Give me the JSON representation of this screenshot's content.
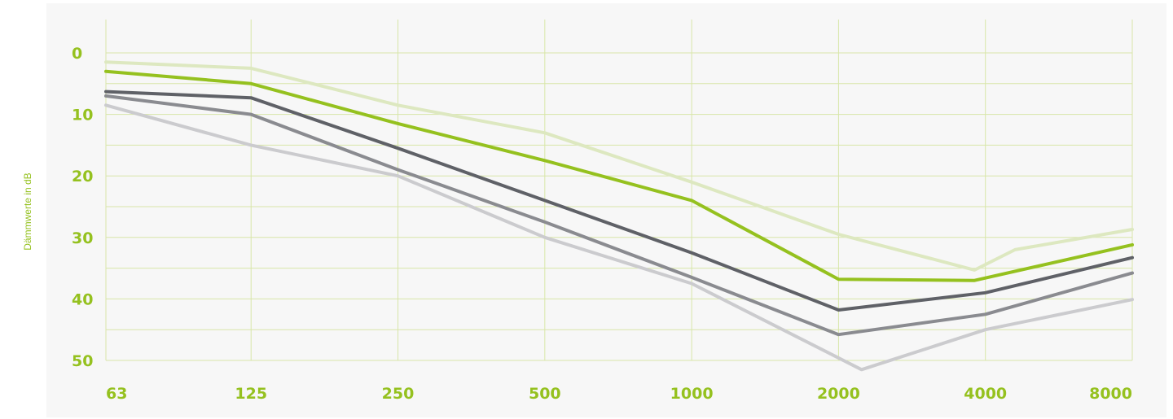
{
  "chart_data": {
    "type": "line",
    "title": "",
    "xlabel": "",
    "ylabel": "Dämmwerte in dB",
    "categories": [
      "63",
      "125",
      "250",
      "500",
      "1000",
      "2000",
      "4000",
      "8000"
    ],
    "y_ticks": [
      "0",
      "10",
      "20",
      "30",
      "40",
      "50"
    ],
    "ylim": [
      50,
      0
    ],
    "y_inverted": true,
    "grid": true,
    "x_scale": "log2",
    "series": [
      {
        "color": "#dde8c0",
        "points": [
          [
            63,
            1.5
          ],
          [
            125,
            2.5
          ],
          [
            250,
            8.5
          ],
          [
            500,
            13
          ],
          [
            1000,
            21
          ],
          [
            2000,
            29.5
          ],
          [
            3800,
            35.3
          ],
          [
            4600,
            32
          ],
          [
            8000,
            28.7
          ]
        ]
      },
      {
        "color": "#95c11f",
        "points": [
          [
            63,
            3
          ],
          [
            125,
            5
          ],
          [
            250,
            11.5
          ],
          [
            500,
            17.5
          ],
          [
            1000,
            24
          ],
          [
            2000,
            36.8
          ],
          [
            3800,
            37
          ],
          [
            8000,
            31.2
          ]
        ]
      },
      {
        "color": "#5f6167",
        "points": [
          [
            63,
            6.3
          ],
          [
            125,
            7.3
          ],
          [
            250,
            15.5
          ],
          [
            500,
            24
          ],
          [
            1000,
            32.5
          ],
          [
            2000,
            41.8
          ],
          [
            4000,
            39
          ],
          [
            8000,
            33.3
          ]
        ]
      },
      {
        "color": "#8a8b90",
        "points": [
          [
            63,
            7
          ],
          [
            125,
            10
          ],
          [
            250,
            19
          ],
          [
            500,
            27.5
          ],
          [
            1000,
            36.5
          ],
          [
            2000,
            45.8
          ],
          [
            4000,
            42.5
          ],
          [
            8000,
            35.8
          ]
        ]
      },
      {
        "color": "#cbcbce",
        "points": [
          [
            63,
            8.5
          ],
          [
            125,
            15
          ],
          [
            250,
            20
          ],
          [
            500,
            30
          ],
          [
            1000,
            37.5
          ],
          [
            2230,
            51.5
          ],
          [
            4000,
            45
          ],
          [
            8000,
            40.1
          ]
        ]
      }
    ]
  },
  "colors": {
    "accent": "#95c11f",
    "grid": "#d8e6a8",
    "background": "#ffffff",
    "plot_background": "#f7f7f7"
  }
}
